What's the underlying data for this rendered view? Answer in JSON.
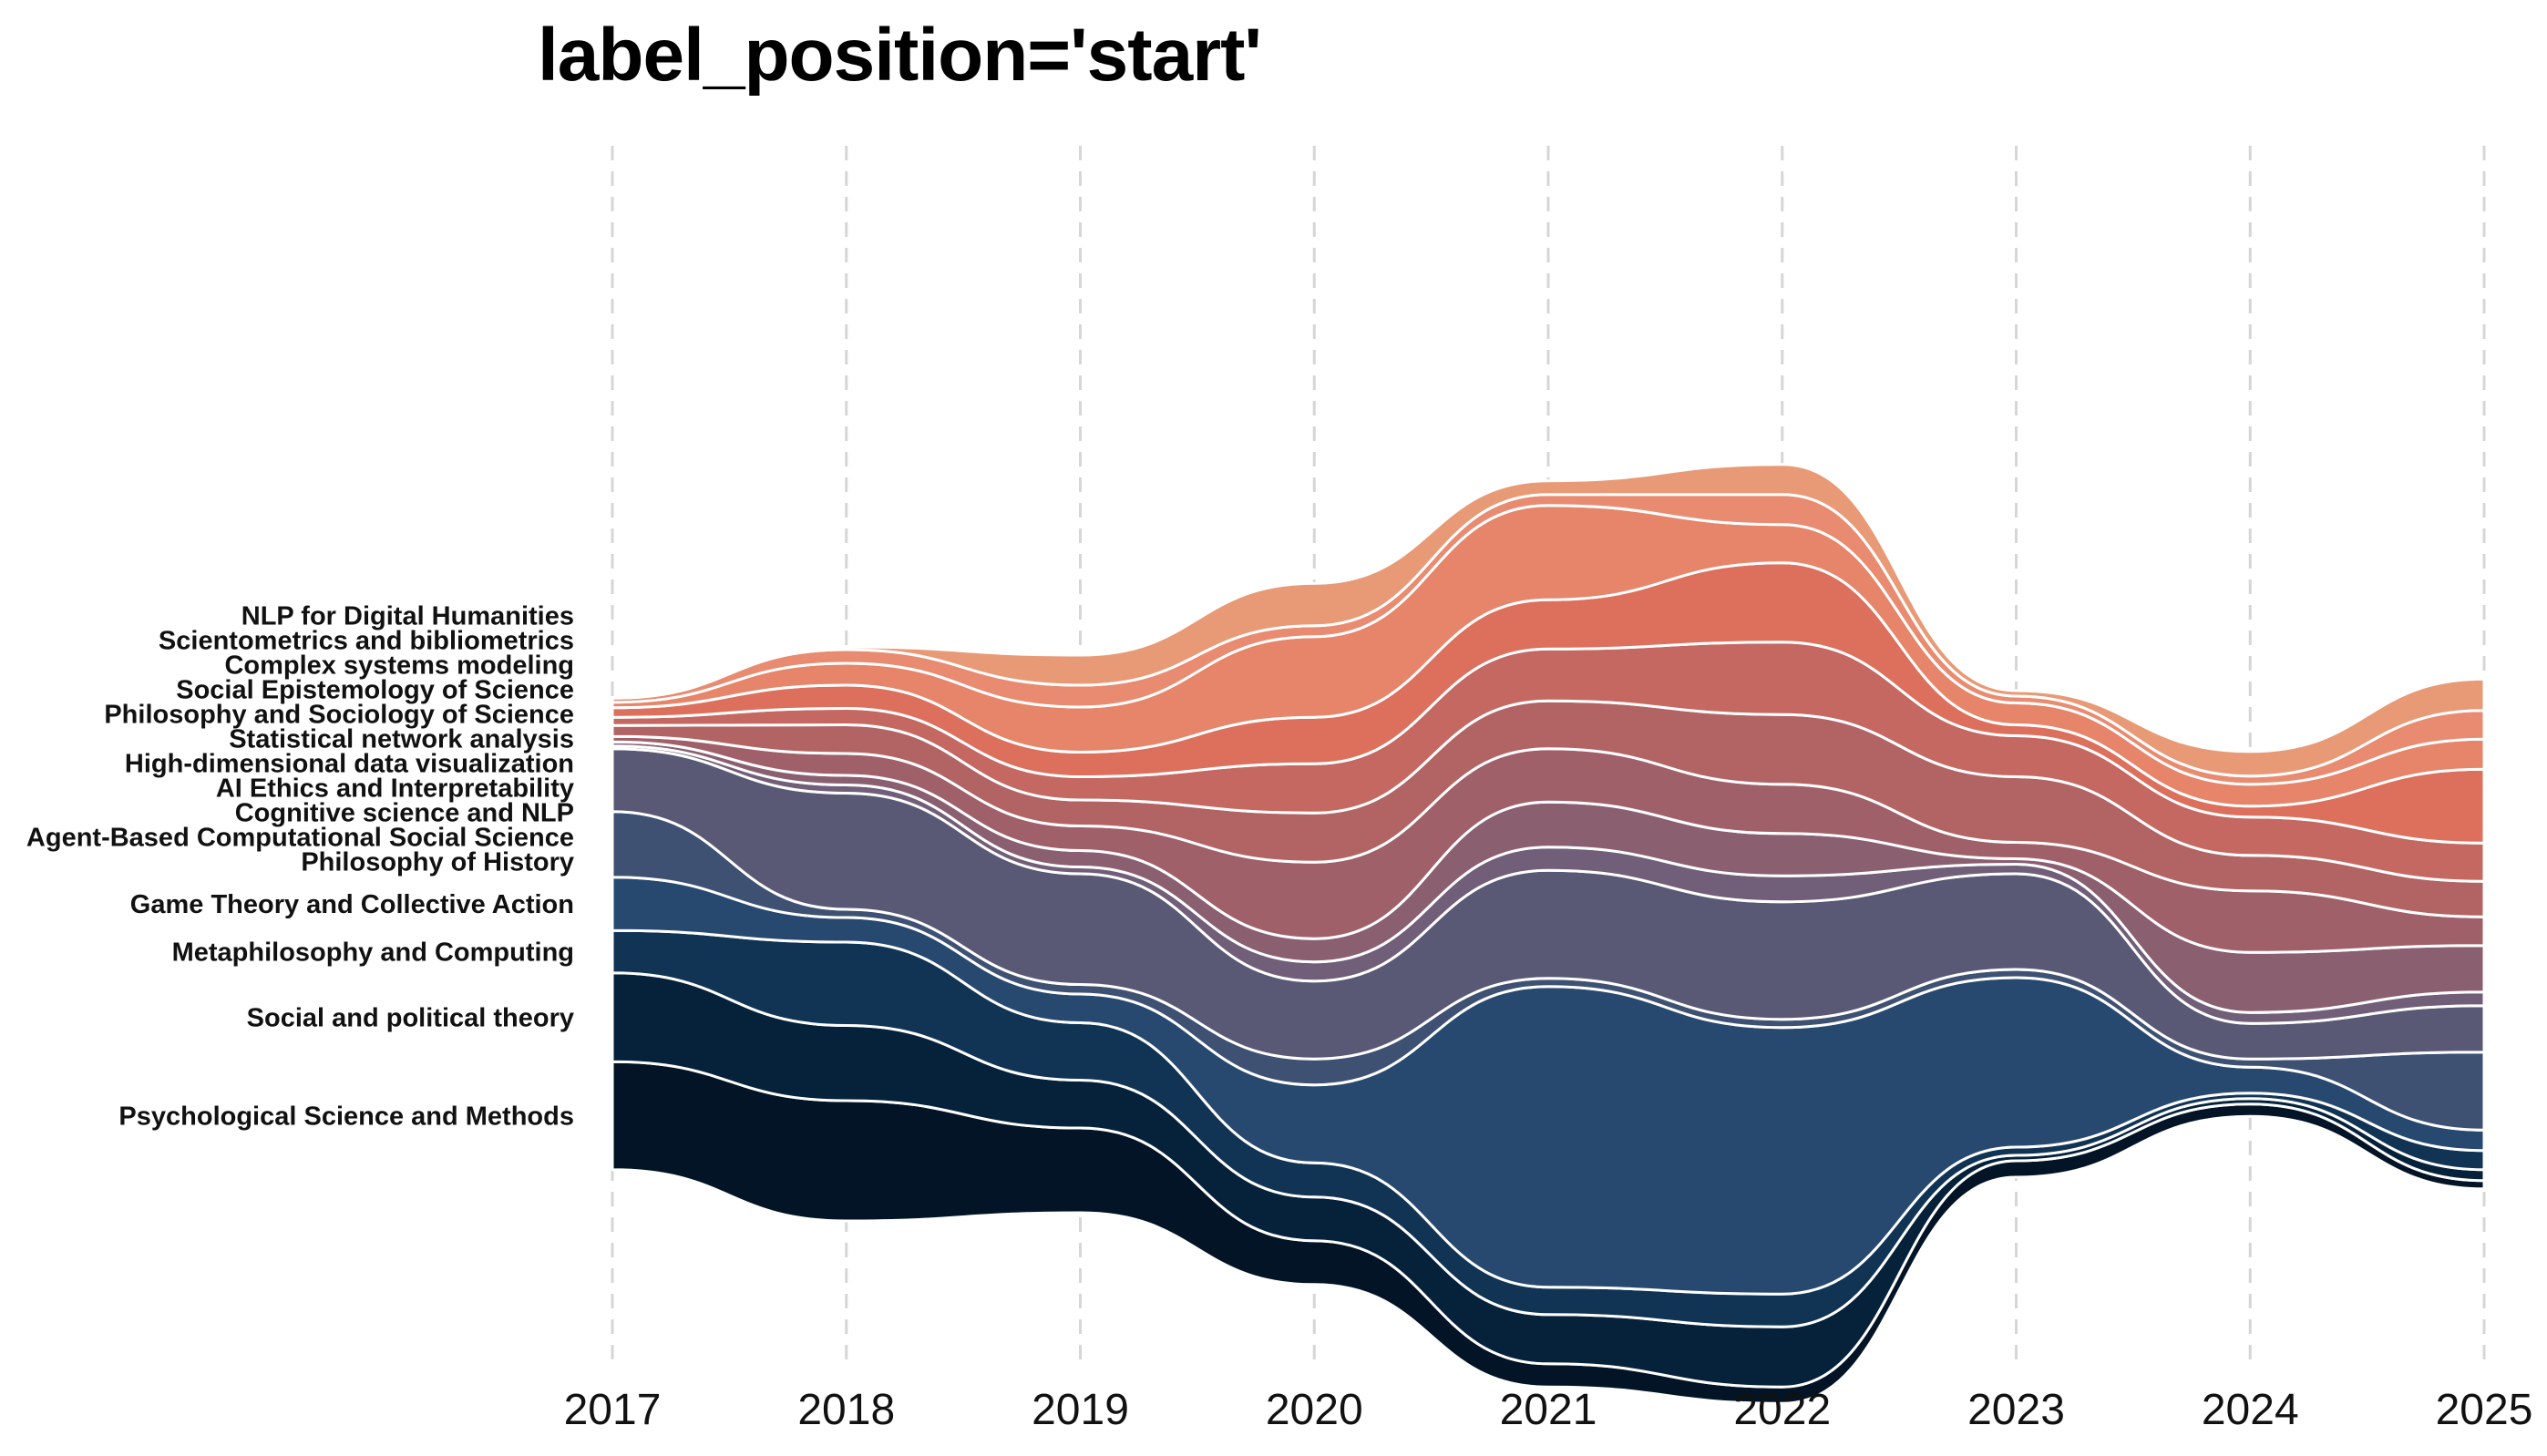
{
  "chart_data": {
    "type": "area",
    "title": "label_position='start'",
    "x": [
      2017,
      2018,
      2019,
      2020,
      2021,
      2022,
      2023,
      2024,
      2025
    ],
    "xlabel": "",
    "ylabel": "",
    "grid": "vertical dashed at each year",
    "legend": "labels at start (left of first year)",
    "series": [
      {
        "name": "Psychological Science and Methods",
        "values": [
          7.9,
          8.8,
          6.2,
          3.2,
          1.7,
          1.2,
          1.2,
          0.9,
          0.6
        ],
        "color": "#021425"
      },
      {
        "name": "Social and political theory",
        "values": [
          6.5,
          5.5,
          3.5,
          3.2,
          3.6,
          4.4,
          0.4,
          0.4,
          0.8
        ],
        "color": "#06213a"
      },
      {
        "name": "Metaphilosophy and Computing",
        "values": [
          3.1,
          6.1,
          4.2,
          2.5,
          2.0,
          2.4,
          0.6,
          0.4,
          1.4
        ],
        "color": "#113455"
      },
      {
        "name": "Game Theory and Collective Action",
        "values": [
          3.9,
          1.8,
          2.1,
          5.7,
          22.0,
          19.5,
          12.4,
          1.9,
          1.5
        ],
        "color": "#28496f"
      },
      {
        "name": "Philosophy of History",
        "values": [
          4.8,
          0.6,
          0.7,
          1.9,
          0.6,
          0.6,
          0.6,
          0.6,
          5.7
        ],
        "color": "#3e5173"
      },
      {
        "name": "Agent-Based Computational Social Science",
        "values": [
          4.6,
          8.5,
          8.1,
          5.7,
          7.9,
          8.6,
          7.0,
          2.6,
          3.4
        ],
        "color": "#5a5975"
      },
      {
        "name": "Cognitive science and NLP",
        "values": [
          0.2,
          0.6,
          0.5,
          1.4,
          1.7,
          1.9,
          0.7,
          0.8,
          1.0
        ],
        "color": "#715e78"
      },
      {
        "name": "AI Ethics and Interpretability",
        "values": [
          0.3,
          0.7,
          1.2,
          1.7,
          3.3,
          3.1,
          0.4,
          4.4,
          3.4
        ],
        "color": "#8a5f70"
      },
      {
        "name": "High-dimensional data visualization",
        "values": [
          0.4,
          1.6,
          1.8,
          5.6,
          3.9,
          3.6,
          1.2,
          4.5,
          2.1
        ],
        "color": "#a06069"
      },
      {
        "name": "Statistical network analysis",
        "values": [
          0.8,
          2.1,
          1.9,
          3.6,
          3.5,
          5.1,
          4.8,
          2.6,
          2.6
        ],
        "color": "#b26464"
      },
      {
        "name": "Philosophy and Sociology of Science",
        "values": [
          0.6,
          1.2,
          1.7,
          3.6,
          3.8,
          5.3,
          3.0,
          2.8,
          2.8
        ],
        "color": "#c56862"
      },
      {
        "name": "Social Epistemology of Science",
        "values": [
          0.7,
          1.7,
          1.8,
          3.4,
          3.6,
          5.8,
          0.8,
          0.8,
          5.4
        ],
        "color": "#dc705d"
      },
      {
        "name": "Complex systems modeling",
        "values": [
          0.4,
          1.6,
          3.3,
          5.9,
          6.9,
          2.8,
          1.6,
          1.6,
          2.2
        ],
        "color": "#e6856a"
      },
      {
        "name": "Scientometrics and bibliometrics",
        "values": [
          0.3,
          1.0,
          1.6,
          0.8,
          0.8,
          2.2,
          0.5,
          0.6,
          2.1
        ],
        "color": "#e98b70"
      },
      {
        "name": "NLP for Digital Humanities",
        "values": [
          0.0,
          0.2,
          2.2,
          3.1,
          1.0,
          2.2,
          0.4,
          1.8,
          2.3
        ],
        "color": "#e89a76"
      }
    ]
  }
}
